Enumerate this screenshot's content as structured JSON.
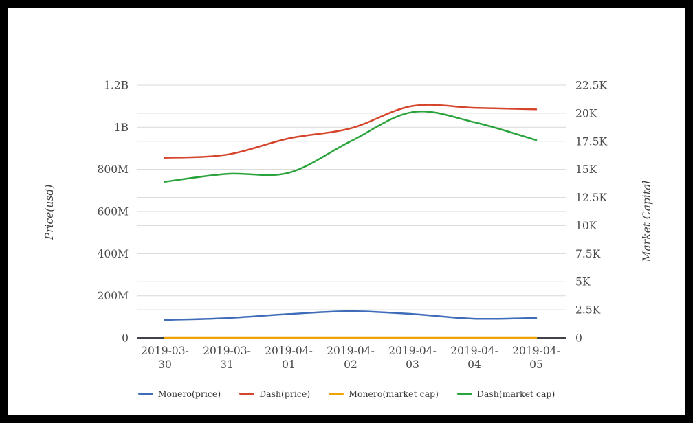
{
  "chart_data": {
    "type": "line",
    "title": "",
    "categories": [
      "2019-03-30",
      "2019-03-31",
      "2019-04-01",
      "2019-04-02",
      "2019-04-03",
      "2019-04-04",
      "2019-04-05"
    ],
    "left_axis": {
      "label": "Price(usd)",
      "min": 0,
      "max": 1200000000,
      "tick_labels": [
        "0",
        "200M",
        "400M",
        "600M",
        "800M",
        "1B",
        "1.2B"
      ]
    },
    "right_axis": {
      "label": "Market Capital",
      "min": 0,
      "max": 22500,
      "tick_labels": [
        "0",
        "2.5K",
        "5K",
        "7.5K",
        "10K",
        "12.5K",
        "15K",
        "17.5K",
        "20K",
        "22.5K"
      ]
    },
    "grid": "horizontal",
    "legend_position": "bottom",
    "series": [
      {
        "name": "Monero(price)",
        "axis": "left",
        "color": "#3e6cb8",
        "values": [
          85000000,
          94000000,
          113000000,
          127000000,
          113000000,
          91000000,
          95000000
        ]
      },
      {
        "name": "Dash(price)",
        "axis": "left",
        "color": "#d5452b",
        "values": [
          855000000,
          870000000,
          947000000,
          995000000,
          1101000000,
          1092000000,
          1085000000
        ]
      },
      {
        "name": "Monero(market cap)",
        "axis": "right",
        "color": "#f0a202",
        "values": [
          0,
          0,
          0,
          0,
          0,
          0,
          0
        ]
      },
      {
        "name": "Dash(market cap)",
        "axis": "right",
        "color": "#2aa33c",
        "values": [
          13900,
          14600,
          14700,
          17500,
          20100,
          19200,
          17600
        ]
      }
    ]
  },
  "style": {
    "grid_color": "#d8d8d8",
    "axis_line_color": "#24272e",
    "tick_label_color": "#4b4b4b"
  }
}
